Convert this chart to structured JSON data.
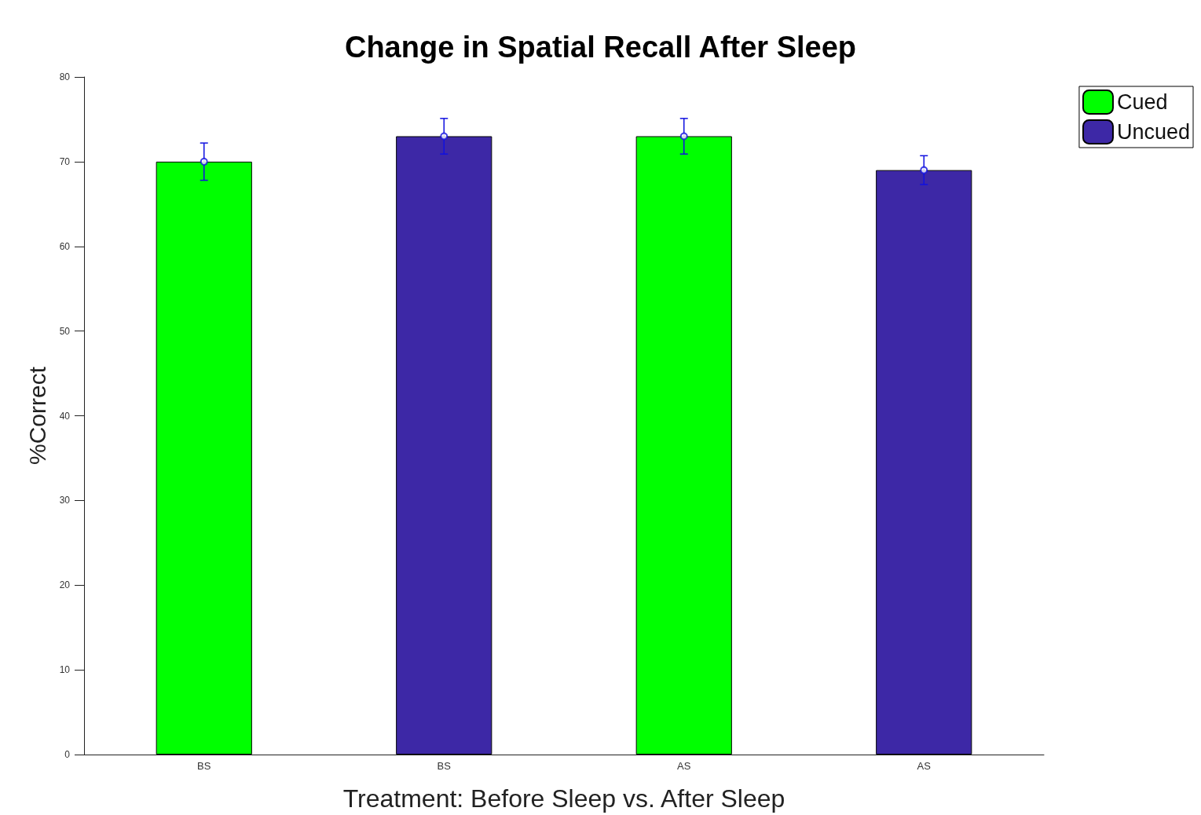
{
  "chart_data": {
    "type": "bar",
    "title": "Change in Spatial Recall After Sleep",
    "xlabel": "Treatment: Before Sleep vs. After Sleep",
    "ylabel": "%Correct",
    "categories": [
      "BS",
      "BS",
      "AS",
      "AS"
    ],
    "series": [
      {
        "name": "Cued",
        "color": "#00ff00",
        "values": [
          70,
          null,
          73,
          null
        ]
      },
      {
        "name": "Uncued",
        "color": "#3d28a6",
        "values": [
          null,
          73,
          null,
          69
        ]
      },
      {
        "type": "scatter",
        "color": "#1010e0",
        "values": [
          70,
          73,
          73,
          69
        ],
        "errors": [
          2.2,
          2.1,
          2.1,
          1.7
        ],
        "marker": "circle"
      }
    ],
    "ylim": [
      0,
      80
    ],
    "yticks": [
      0,
      10,
      20,
      30,
      40,
      50,
      60,
      70,
      80
    ],
    "grid": false,
    "legend": "top right"
  }
}
